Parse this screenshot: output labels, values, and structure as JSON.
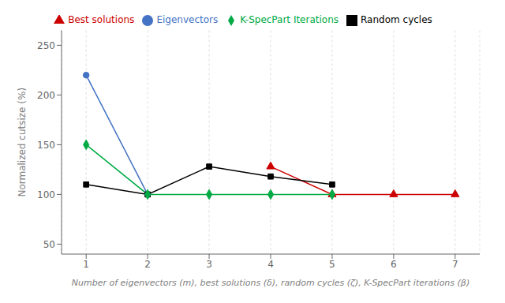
{
  "chart_data": {
    "type": "line",
    "xlabel": "Number of eigenvectors (m), best solutions (δ), random cycles (ζ), K-SpecPart iterations (β)",
    "ylabel": "Normalized cutsize (%)",
    "series": [
      {
        "name": "Eigenvectors",
        "color": "#4472C4",
        "marker": "circle",
        "x": [
          1,
          2
        ],
        "values": [
          220,
          100
        ]
      },
      {
        "name": "Best solutions",
        "color": "#CC0000",
        "marker": "triangle",
        "x": [
          4,
          5,
          6,
          7
        ],
        "values": [
          128,
          100,
          100,
          100
        ]
      },
      {
        "name": "Random cycles",
        "color": "#000000",
        "marker": "square",
        "x": [
          1,
          2,
          3,
          4,
          5
        ],
        "values": [
          110,
          100,
          128,
          118,
          110
        ]
      },
      {
        "name": "K-SpecPart Iterations",
        "color": "#00AA44",
        "marker": "diamond",
        "x": [
          1,
          2,
          3,
          4,
          5
        ],
        "values": [
          150,
          100,
          100,
          100,
          100
        ]
      }
    ],
    "xlim": [
      0.6,
      7.4
    ],
    "xticks": [
      1,
      2,
      3,
      4,
      5,
      6,
      7
    ],
    "ylim": [
      40,
      265
    ],
    "yticks": [
      50,
      100,
      150,
      200,
      250
    ],
    "grid": "x",
    "legend": "top"
  }
}
